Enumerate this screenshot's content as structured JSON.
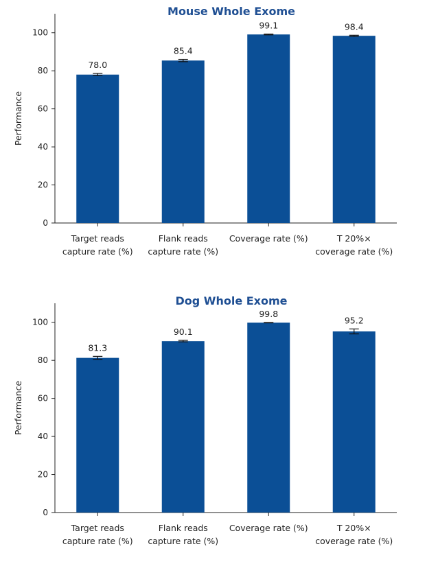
{
  "colors": {
    "bar": "#0b4f96",
    "title": "#1f4f93"
  },
  "chart_data": [
    {
      "type": "bar",
      "title": "Mouse Whole Exome",
      "xlabel": "",
      "ylabel": "Performance",
      "ylim": [
        0,
        110
      ],
      "yticks": [
        0,
        20,
        40,
        60,
        80,
        100
      ],
      "categories": [
        [
          "Target reads",
          "capture rate (%)"
        ],
        [
          "Flank reads",
          "capture rate (%)"
        ],
        [
          "Coverage rate (%)"
        ],
        [
          "T 20%×",
          "coverage rate (%)"
        ]
      ],
      "values": [
        78.0,
        85.4,
        99.1,
        98.4
      ],
      "value_labels": [
        "78.0",
        "85.4",
        "99.1",
        "98.4"
      ],
      "errors": [
        0.6,
        0.6,
        0.2,
        0.3
      ]
    },
    {
      "type": "bar",
      "title": "Dog Whole Exome",
      "xlabel": "",
      "ylabel": "Performance",
      "ylim": [
        0,
        110
      ],
      "yticks": [
        0,
        20,
        40,
        60,
        80,
        100
      ],
      "categories": [
        [
          "Target reads",
          "capture rate (%)"
        ],
        [
          "Flank reads",
          "capture rate (%)"
        ],
        [
          "Coverage rate (%)"
        ],
        [
          "T 20%×",
          "coverage rate (%)"
        ]
      ],
      "values": [
        81.3,
        90.1,
        99.8,
        95.2
      ],
      "value_labels": [
        "81.3",
        "90.1",
        "99.8",
        "95.2"
      ],
      "errors": [
        0.8,
        0.4,
        0.1,
        1.3
      ]
    }
  ]
}
